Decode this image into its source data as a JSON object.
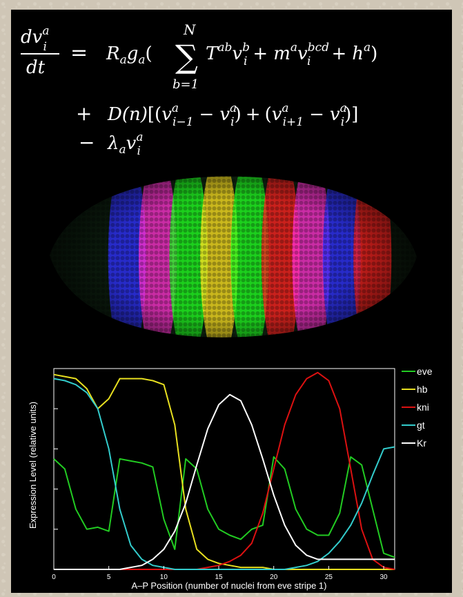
{
  "equation": {
    "lhs_num": "dv",
    "lhs_sup": "a",
    "lhs_sub": "i",
    "lhs_den": "dt",
    "eq": "=",
    "line1_func": "R",
    "line1_func_sub": "a",
    "line1_g": "g",
    "line1_g_sub": "a",
    "sum_top": "N",
    "sum_bottom": "b=1",
    "line1_body": "T",
    "line1_T_sup": "ab",
    "plus": "+",
    "minus": "−",
    "line2_D": "D(n)",
    "line3_lambda": "λ",
    "v": "v",
    "m": "m",
    "h": "h",
    "sup_a": "a",
    "sup_b": "b",
    "sup_bcd": "bcd",
    "sub_i": "i",
    "sub_im1": "i−1",
    "sub_ip1": "i+1",
    "sub_a": "a"
  },
  "embryo": {
    "stripe_colors": [
      "#3030ff",
      "#ff30d0",
      "#20ff20",
      "#ffe020",
      "#20ff20",
      "#ff2020",
      "#ff30d0",
      "#3030ff",
      "#ff2020"
    ]
  },
  "chart_data": {
    "type": "line",
    "xlabel": "A–P Position (number of nuclei from eve stripe 1)",
    "ylabel": "Expression Level (relative units)",
    "xlim": [
      0,
      31
    ],
    "ylim": [
      0,
      1
    ],
    "xticks": [
      0,
      5,
      10,
      15,
      20,
      25,
      30
    ],
    "grid": false,
    "legend_position": "right",
    "series": [
      {
        "name": "eve",
        "color": "#22cc22",
        "x": [
          0,
          1,
          2,
          3,
          4,
          5,
          6,
          7,
          8,
          9,
          10,
          11,
          12,
          13,
          14,
          15,
          16,
          17,
          18,
          19,
          20,
          21,
          22,
          23,
          24,
          25,
          26,
          27,
          28,
          29,
          30,
          31
        ],
        "values": [
          0.55,
          0.5,
          0.3,
          0.2,
          0.21,
          0.19,
          0.55,
          0.54,
          0.53,
          0.51,
          0.25,
          0.1,
          0.55,
          0.5,
          0.3,
          0.2,
          0.17,
          0.15,
          0.2,
          0.22,
          0.56,
          0.5,
          0.3,
          0.2,
          0.17,
          0.17,
          0.28,
          0.56,
          0.52,
          0.3,
          0.08,
          0.06
        ]
      },
      {
        "name": "hb",
        "color": "#e8e020",
        "x": [
          0,
          1,
          2,
          3,
          4,
          5,
          6,
          7,
          8,
          9,
          10,
          11,
          12,
          13,
          14,
          15,
          16,
          17,
          18,
          19,
          20,
          21,
          22,
          23,
          24,
          25,
          26,
          27,
          28,
          29,
          30,
          31
        ],
        "values": [
          0.97,
          0.96,
          0.95,
          0.9,
          0.8,
          0.85,
          0.95,
          0.95,
          0.95,
          0.94,
          0.92,
          0.72,
          0.3,
          0.1,
          0.05,
          0.03,
          0.02,
          0.01,
          0.01,
          0.01,
          0.0,
          0.0,
          0.0,
          0.0,
          0.0,
          0.0,
          0.0,
          0.0,
          0.0,
          0.0,
          0.0,
          0.0
        ]
      },
      {
        "name": "kni",
        "color": "#dd1111",
        "x": [
          0,
          1,
          2,
          3,
          4,
          5,
          6,
          7,
          8,
          9,
          10,
          11,
          12,
          13,
          14,
          15,
          16,
          17,
          18,
          19,
          20,
          21,
          22,
          23,
          24,
          25,
          26,
          27,
          28,
          29,
          30,
          31
        ],
        "values": [
          0.0,
          0.0,
          0.0,
          0.0,
          0.0,
          0.0,
          0.0,
          0.0,
          0.0,
          0.0,
          0.0,
          0.0,
          0.0,
          0.0,
          0.01,
          0.02,
          0.04,
          0.07,
          0.13,
          0.28,
          0.5,
          0.72,
          0.87,
          0.95,
          0.98,
          0.94,
          0.8,
          0.5,
          0.2,
          0.05,
          0.01,
          0.0
        ]
      },
      {
        "name": "gt",
        "color": "#33cccc",
        "x": [
          0,
          1,
          2,
          3,
          4,
          5,
          6,
          7,
          8,
          9,
          10,
          11,
          12,
          13,
          14,
          15,
          16,
          17,
          18,
          19,
          20,
          21,
          22,
          23,
          24,
          25,
          26,
          27,
          28,
          29,
          30,
          31
        ],
        "values": [
          0.95,
          0.94,
          0.92,
          0.88,
          0.8,
          0.6,
          0.3,
          0.12,
          0.05,
          0.02,
          0.01,
          0.0,
          0.0,
          0.0,
          0.0,
          0.0,
          0.0,
          0.0,
          0.0,
          0.0,
          0.0,
          0.0,
          0.01,
          0.02,
          0.04,
          0.08,
          0.14,
          0.22,
          0.33,
          0.47,
          0.6,
          0.61
        ]
      },
      {
        "name": "Kr",
        "color": "#ffffff",
        "x": [
          0,
          1,
          2,
          3,
          4,
          5,
          6,
          7,
          8,
          9,
          10,
          11,
          12,
          13,
          14,
          15,
          16,
          17,
          18,
          19,
          20,
          21,
          22,
          23,
          24,
          25,
          26,
          27,
          28,
          29,
          30,
          31
        ],
        "values": [
          0.0,
          0.0,
          0.0,
          0.0,
          0.0,
          0.0,
          0.0,
          0.01,
          0.02,
          0.05,
          0.1,
          0.19,
          0.33,
          0.52,
          0.7,
          0.82,
          0.87,
          0.84,
          0.72,
          0.55,
          0.37,
          0.22,
          0.12,
          0.07,
          0.05,
          0.05,
          0.05,
          0.05,
          0.05,
          0.05,
          0.05,
          0.05
        ]
      }
    ]
  }
}
